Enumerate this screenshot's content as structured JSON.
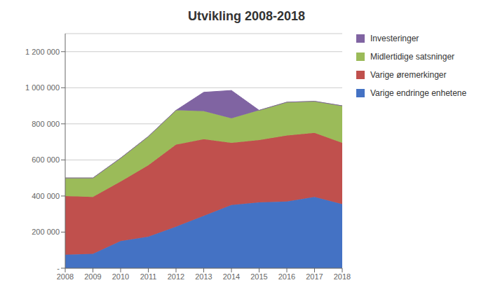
{
  "chart_data": {
    "type": "area",
    "title": "Utvikling 2008-2018",
    "stacked": true,
    "x": [
      2008,
      2009,
      2010,
      2011,
      2012,
      2013,
      2014,
      2015,
      2016,
      2017,
      2018
    ],
    "xlim": [
      2008,
      2018
    ],
    "xticks": [
      2008,
      2009,
      2010,
      2011,
      2012,
      2013,
      2014,
      2015,
      2016,
      2017,
      2018
    ],
    "ylim": [
      0,
      1300000
    ],
    "yticks": [
      {
        "value": 0,
        "label": "-"
      },
      {
        "value": 200000,
        "label": "200 000"
      },
      {
        "value": 400000,
        "label": "400 000"
      },
      {
        "value": 600000,
        "label": "600 000"
      },
      {
        "value": 800000,
        "label": "800 000"
      },
      {
        "value": 1000000,
        "label": "1 000 000"
      },
      {
        "value": 1200000,
        "label": "1 200 000"
      }
    ],
    "grid": true,
    "legend": "right",
    "series": [
      {
        "name": "Varige endringe enhetene",
        "color": "#4472C4",
        "values": [
          75000,
          80000,
          150000,
          175000,
          230000,
          290000,
          350000,
          365000,
          370000,
          395000,
          355000
        ]
      },
      {
        "name": "Varige øremerkinger",
        "color": "#C0504D",
        "values": [
          325000,
          315000,
          330000,
          395000,
          455000,
          425000,
          345000,
          345000,
          365000,
          355000,
          340000
        ]
      },
      {
        "name": "Midlertidige satsninger",
        "color": "#9BBB59",
        "values": [
          100000,
          105000,
          130000,
          160000,
          190000,
          155000,
          135000,
          165000,
          185000,
          175000,
          205000
        ]
      },
      {
        "name": "Investeringer",
        "color": "#8064A2",
        "values": [
          0,
          0,
          0,
          0,
          0,
          105000,
          155000,
          0,
          0,
          0,
          0
        ]
      }
    ]
  }
}
